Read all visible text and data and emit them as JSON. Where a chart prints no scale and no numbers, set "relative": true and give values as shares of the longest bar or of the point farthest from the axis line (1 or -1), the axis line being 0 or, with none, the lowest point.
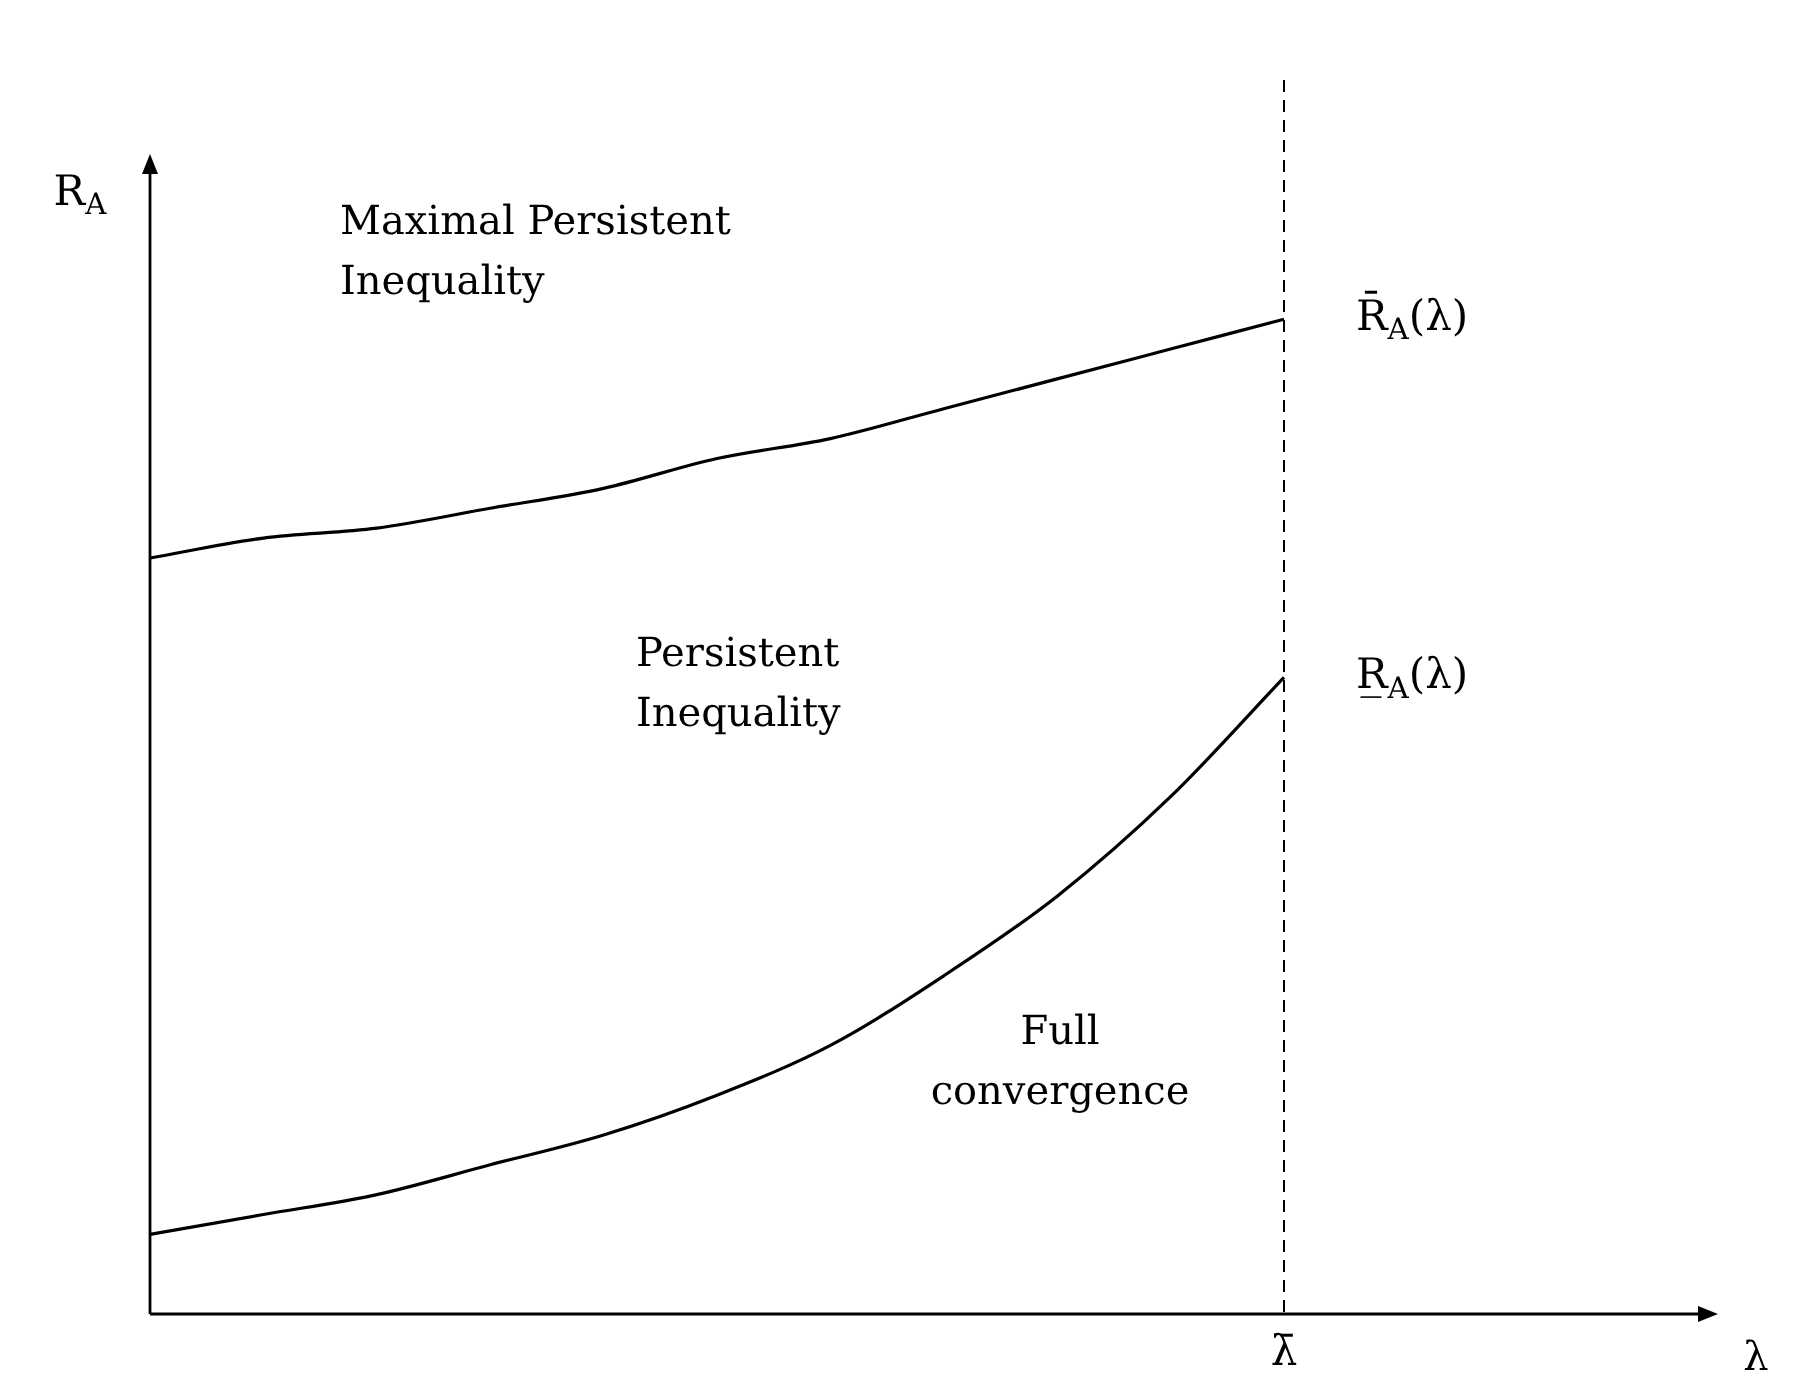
{
  "chart_data": {
    "type": "line",
    "relative": true,
    "ylabel": "R$_{A}$",
    "categories": [
      null,
      null,
      null,
      null,
      null,
      null,
      null,
      null,
      null,
      null,
      null
    ],
    "series": [
      {
        "name": "R̄$_{A}$(λ)",
        "color": "#000000",
        "values": [
          0.76,
          0.78,
          0.79,
          0.81,
          0.83,
          0.86,
          0.88,
          0.91,
          0.94,
          0.97,
          1
        ]
      },
      {
        "name": "R̲$_{A}$(λ)",
        "color": "#000000",
        "values": [
          0.08,
          0.1,
          0.12,
          0.15,
          0.18,
          0.22,
          0.27,
          0.34,
          0.42,
          0.52,
          0.64
        ]
      }
    ],
    "ref_lines": [
      {
        "axis": "x",
        "label": "λ̄",
        "line_style": "dashed",
        "color": "#000000"
      }
    ],
    "annotations": [
      "Maximal Persistent Inequality",
      "Persistent Inequality",
      "Full convergence",
      "λ"
    ],
    "legend": false,
    "grid": false,
    "marker": "none",
    "line_style": "solid"
  }
}
